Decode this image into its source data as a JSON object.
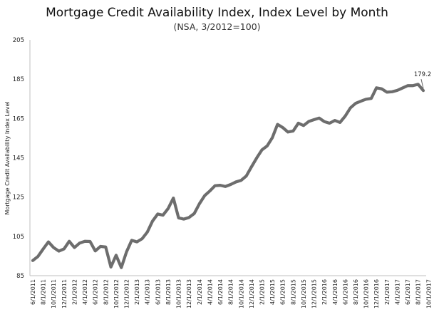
{
  "chart_data": {
    "type": "line",
    "title": "Mortgage Credit Availability Index, Index Level by Month",
    "subtitle": "(NSA, 3/2012=100)",
    "ylabel": "Mortgage Credit Availability Index Level",
    "xlabel": "",
    "ylim": [
      85,
      205
    ],
    "yticks": [
      85,
      105,
      125,
      145,
      165,
      185,
      205
    ],
    "grid": false,
    "xtick_labels": [
      "6/1/2011",
      "8/1/2011",
      "10/1/2011",
      "12/1/2011",
      "2/1/2012",
      "4/1/2012",
      "6/1/2012",
      "8/1/2012",
      "10/1/2012",
      "12/1/2012",
      "2/1/2013",
      "4/1/2013",
      "6/1/2013",
      "8/1/2013",
      "10/1/2013",
      "12/1/2013",
      "2/1/2014",
      "4/1/2014",
      "6/1/2014",
      "8/1/2014",
      "10/1/2014",
      "12/1/2014",
      "2/1/2015",
      "4/1/2015",
      "6/1/2015",
      "8/1/2015",
      "10/1/2015",
      "12/1/2015",
      "2/1/2016",
      "4/1/2016",
      "6/1/2016",
      "8/1/2016",
      "10/1/2016",
      "12/1/2016",
      "2/1/2017",
      "4/1/2017",
      "6/1/2017",
      "8/1/2017",
      "10/1/2017",
      "12/1/2017"
    ],
    "series": [
      {
        "name": "",
        "color": "#6d6d6d",
        "values": [
          92.7,
          94.8,
          98.6,
          102.2,
          99.3,
          97.5,
          98.6,
          102.5,
          99.3,
          101.6,
          102.5,
          102.4,
          97.6,
          99.9,
          99.6,
          89.4,
          95.4,
          89.1,
          97.1,
          103.0,
          102.2,
          103.8,
          107.2,
          112.8,
          116.4,
          115.8,
          119.2,
          124.5,
          114.4,
          113.8,
          114.6,
          116.6,
          121.6,
          125.7,
          128.1,
          130.8,
          131.0,
          130.4,
          131.4,
          132.7,
          133.5,
          135.7,
          140.4,
          144.9,
          149.0,
          151.0,
          155.2,
          162.0,
          160.4,
          158.1,
          158.6,
          162.6,
          161.4,
          163.5,
          164.4,
          165.2,
          163.4,
          162.6,
          164.0,
          163.0,
          166.2,
          170.4,
          172.7,
          173.8,
          174.8,
          175.2,
          180.6,
          180.1,
          178.4,
          178.6,
          179.3,
          180.5,
          181.7,
          181.7,
          182.4,
          179.2
        ]
      }
    ],
    "annotations": [
      {
        "text": "179.2",
        "x_index": 75,
        "y": 179.2
      }
    ]
  }
}
